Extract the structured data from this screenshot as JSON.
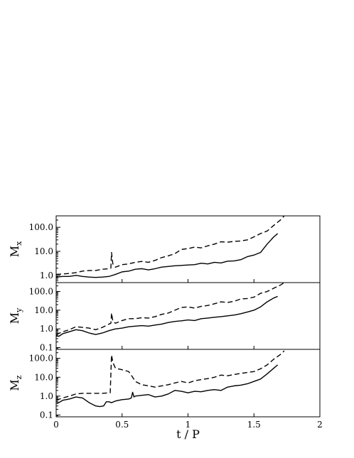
{
  "chart_data": {
    "type": "line",
    "shared_x": {
      "xlabel": "t / P",
      "xlim": [
        0,
        2
      ],
      "xticks": [
        0,
        0.5,
        1,
        1.5,
        2
      ],
      "xtick_labels": [
        "0",
        "0.5",
        "1",
        "1.5",
        "2"
      ]
    },
    "panels": [
      {
        "ylabel": "M",
        "ylabel_sub": "x",
        "yscale": "log",
        "ylim": [
          0.5,
          300
        ],
        "yticks": [
          1,
          10,
          100
        ],
        "ytick_labels": [
          "1.0",
          "10.0",
          "100.0"
        ],
        "series": [
          {
            "style": "solid",
            "points": [
              [
                0,
                0.85
              ],
              [
                0.05,
                0.9
              ],
              [
                0.1,
                0.9
              ],
              [
                0.15,
                1.0
              ],
              [
                0.2,
                0.9
              ],
              [
                0.25,
                0.85
              ],
              [
                0.3,
                0.82
              ],
              [
                0.35,
                0.85
              ],
              [
                0.4,
                0.9
              ],
              [
                0.45,
                1.1
              ],
              [
                0.5,
                1.4
              ],
              [
                0.55,
                1.5
              ],
              [
                0.6,
                1.8
              ],
              [
                0.65,
                1.9
              ],
              [
                0.7,
                1.7
              ],
              [
                0.75,
                1.9
              ],
              [
                0.8,
                2.2
              ],
              [
                0.9,
                2.5
              ],
              [
                1.0,
                2.7
              ],
              [
                1.05,
                2.8
              ],
              [
                1.1,
                3.2
              ],
              [
                1.15,
                3.0
              ],
              [
                1.2,
                3.5
              ],
              [
                1.25,
                3.3
              ],
              [
                1.3,
                3.9
              ],
              [
                1.35,
                4.0
              ],
              [
                1.4,
                4.5
              ],
              [
                1.45,
                6.0
              ],
              [
                1.5,
                7.0
              ],
              [
                1.55,
                9.0
              ],
              [
                1.6,
                20
              ],
              [
                1.65,
                40
              ],
              [
                1.68,
                55
              ]
            ]
          },
          {
            "style": "dashed",
            "points": [
              [
                0,
                1.1
              ],
              [
                0.05,
                1.15
              ],
              [
                0.1,
                1.2
              ],
              [
                0.15,
                1.3
              ],
              [
                0.2,
                1.5
              ],
              [
                0.25,
                1.6
              ],
              [
                0.3,
                1.6
              ],
              [
                0.35,
                1.8
              ],
              [
                0.4,
                1.9
              ],
              [
                0.415,
                2.0
              ],
              [
                0.42,
                9.0
              ],
              [
                0.43,
                3.0
              ],
              [
                0.45,
                2.2
              ],
              [
                0.5,
                2.8
              ],
              [
                0.55,
                3.0
              ],
              [
                0.6,
                3.5
              ],
              [
                0.65,
                3.8
              ],
              [
                0.7,
                3.5
              ],
              [
                0.75,
                4.2
              ],
              [
                0.8,
                5.5
              ],
              [
                0.85,
                6.5
              ],
              [
                0.9,
                8.0
              ],
              [
                0.95,
                12
              ],
              [
                1.0,
                13
              ],
              [
                1.05,
                15
              ],
              [
                1.1,
                14
              ],
              [
                1.15,
                17
              ],
              [
                1.2,
                20
              ],
              [
                1.25,
                25
              ],
              [
                1.3,
                24
              ],
              [
                1.35,
                26
              ],
              [
                1.4,
                27
              ],
              [
                1.45,
                30
              ],
              [
                1.5,
                40
              ],
              [
                1.55,
                55
              ],
              [
                1.6,
                70
              ],
              [
                1.65,
                120
              ],
              [
                1.7,
                200
              ],
              [
                1.73,
                300
              ]
            ]
          }
        ]
      },
      {
        "ylabel": "M",
        "ylabel_sub": "y",
        "yscale": "log",
        "ylim": [
          0.08,
          300
        ],
        "yticks": [
          0.1,
          1,
          10,
          100
        ],
        "ytick_labels": [
          "0.1",
          "1.0",
          "10.0",
          "100.0"
        ],
        "series": [
          {
            "style": "solid",
            "points": [
              [
                0,
                0.45
              ],
              [
                0.02,
                0.4
              ],
              [
                0.05,
                0.55
              ],
              [
                0.1,
                0.7
              ],
              [
                0.15,
                0.9
              ],
              [
                0.2,
                0.8
              ],
              [
                0.25,
                0.6
              ],
              [
                0.3,
                0.5
              ],
              [
                0.35,
                0.6
              ],
              [
                0.4,
                0.8
              ],
              [
                0.45,
                1.0
              ],
              [
                0.5,
                1.1
              ],
              [
                0.55,
                1.3
              ],
              [
                0.6,
                1.4
              ],
              [
                0.65,
                1.5
              ],
              [
                0.7,
                1.4
              ],
              [
                0.75,
                1.6
              ],
              [
                0.8,
                1.8
              ],
              [
                0.85,
                2.2
              ],
              [
                0.9,
                2.5
              ],
              [
                0.95,
                2.7
              ],
              [
                1.0,
                3.0
              ],
              [
                1.05,
                2.8
              ],
              [
                1.1,
                3.5
              ],
              [
                1.15,
                3.8
              ],
              [
                1.2,
                4.2
              ],
              [
                1.25,
                4.5
              ],
              [
                1.3,
                5.0
              ],
              [
                1.35,
                5.5
              ],
              [
                1.4,
                6.5
              ],
              [
                1.45,
                8.0
              ],
              [
                1.5,
                10
              ],
              [
                1.55,
                15
              ],
              [
                1.6,
                28
              ],
              [
                1.65,
                45
              ],
              [
                1.68,
                55
              ]
            ]
          },
          {
            "style": "dashed",
            "points": [
              [
                0,
                0.5
              ],
              [
                0.05,
                0.7
              ],
              [
                0.1,
                0.9
              ],
              [
                0.15,
                1.3
              ],
              [
                0.2,
                1.2
              ],
              [
                0.25,
                1.1
              ],
              [
                0.3,
                0.9
              ],
              [
                0.35,
                1.2
              ],
              [
                0.4,
                1.8
              ],
              [
                0.415,
                2.0
              ],
              [
                0.42,
                7.0
              ],
              [
                0.43,
                2.5
              ],
              [
                0.45,
                2.0
              ],
              [
                0.5,
                2.8
              ],
              [
                0.55,
                3.5
              ],
              [
                0.6,
                3.5
              ],
              [
                0.65,
                4.0
              ],
              [
                0.7,
                3.8
              ],
              [
                0.75,
                4.5
              ],
              [
                0.8,
                6.0
              ],
              [
                0.85,
                7.0
              ],
              [
                0.9,
                10
              ],
              [
                0.95,
                14
              ],
              [
                1.0,
                15
              ],
              [
                1.05,
                13
              ],
              [
                1.1,
                16
              ],
              [
                1.15,
                18
              ],
              [
                1.2,
                22
              ],
              [
                1.25,
                28
              ],
              [
                1.3,
                26
              ],
              [
                1.35,
                30
              ],
              [
                1.4,
                40
              ],
              [
                1.45,
                42
              ],
              [
                1.5,
                50
              ],
              [
                1.55,
                80
              ],
              [
                1.6,
                100
              ],
              [
                1.65,
                150
              ],
              [
                1.7,
                220
              ],
              [
                1.73,
                300
              ]
            ]
          }
        ]
      },
      {
        "ylabel": "M",
        "ylabel_sub": "z",
        "yscale": "log",
        "ylim": [
          0.08,
          300
        ],
        "yticks": [
          0.1,
          1,
          10,
          100
        ],
        "ytick_labels": [
          "0.1",
          "1.0",
          "10.0",
          "100.0"
        ],
        "series": [
          {
            "style": "solid",
            "points": [
              [
                0,
                0.5
              ],
              [
                0.02,
                0.45
              ],
              [
                0.05,
                0.6
              ],
              [
                0.1,
                0.7
              ],
              [
                0.15,
                0.9
              ],
              [
                0.2,
                0.8
              ],
              [
                0.25,
                0.45
              ],
              [
                0.3,
                0.3
              ],
              [
                0.33,
                0.28
              ],
              [
                0.36,
                0.3
              ],
              [
                0.38,
                0.5
              ],
              [
                0.4,
                0.5
              ],
              [
                0.42,
                0.45
              ],
              [
                0.45,
                0.55
              ],
              [
                0.5,
                0.65
              ],
              [
                0.55,
                0.7
              ],
              [
                0.57,
                0.8
              ],
              [
                0.58,
                1.6
              ],
              [
                0.59,
                0.9
              ],
              [
                0.6,
                1.0
              ],
              [
                0.65,
                1.1
              ],
              [
                0.7,
                1.2
              ],
              [
                0.75,
                0.9
              ],
              [
                0.8,
                1.0
              ],
              [
                0.85,
                1.3
              ],
              [
                0.9,
                2.0
              ],
              [
                0.95,
                1.8
              ],
              [
                1.0,
                1.5
              ],
              [
                1.05,
                1.8
              ],
              [
                1.1,
                1.7
              ],
              [
                1.15,
                2.0
              ],
              [
                1.2,
                2.2
              ],
              [
                1.25,
                2.0
              ],
              [
                1.3,
                3.0
              ],
              [
                1.35,
                3.5
              ],
              [
                1.4,
                3.8
              ],
              [
                1.45,
                4.5
              ],
              [
                1.5,
                6.0
              ],
              [
                1.55,
                8.0
              ],
              [
                1.6,
                15
              ],
              [
                1.65,
                30
              ],
              [
                1.68,
                45
              ]
            ]
          },
          {
            "style": "dashed",
            "points": [
              [
                0,
                0.6
              ],
              [
                0.05,
                0.8
              ],
              [
                0.1,
                1.0
              ],
              [
                0.15,
                1.3
              ],
              [
                0.2,
                1.4
              ],
              [
                0.25,
                1.4
              ],
              [
                0.3,
                1.4
              ],
              [
                0.35,
                1.4
              ],
              [
                0.4,
                1.5
              ],
              [
                0.41,
                1.5
              ],
              [
                0.42,
                150
              ],
              [
                0.43,
                60
              ],
              [
                0.45,
                30
              ],
              [
                0.5,
                25
              ],
              [
                0.55,
                20
              ],
              [
                0.58,
                10
              ],
              [
                0.6,
                6.0
              ],
              [
                0.65,
                4.0
              ],
              [
                0.7,
                3.5
              ],
              [
                0.75,
                3.0
              ],
              [
                0.8,
                3.5
              ],
              [
                0.85,
                4.0
              ],
              [
                0.9,
                5.0
              ],
              [
                0.95,
                6.0
              ],
              [
                1.0,
                5.0
              ],
              [
                1.05,
                6.5
              ],
              [
                1.1,
                7.5
              ],
              [
                1.15,
                8.5
              ],
              [
                1.2,
                10
              ],
              [
                1.25,
                13
              ],
              [
                1.3,
                12
              ],
              [
                1.35,
                14
              ],
              [
                1.4,
                16
              ],
              [
                1.45,
                18
              ],
              [
                1.5,
                20
              ],
              [
                1.55,
                28
              ],
              [
                1.6,
                45
              ],
              [
                1.65,
                90
              ],
              [
                1.7,
                160
              ],
              [
                1.73,
                250
              ]
            ]
          }
        ]
      }
    ]
  }
}
